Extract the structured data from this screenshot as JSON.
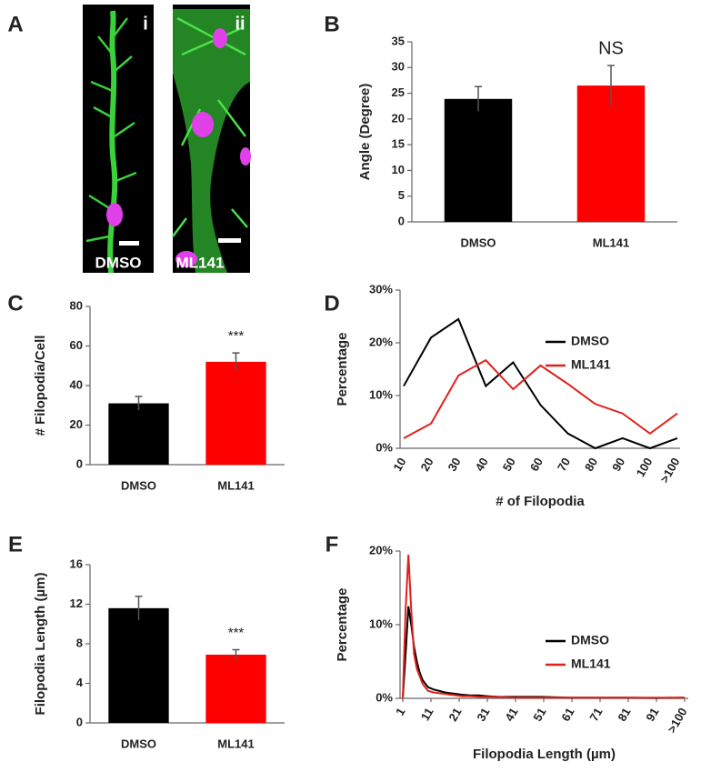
{
  "panel_labels": [
    "A",
    "B",
    "C",
    "D",
    "E",
    "F"
  ],
  "images": [
    {
      "label": "i",
      "caption": "DMSO"
    },
    {
      "label": "ii",
      "caption": "ML141"
    }
  ],
  "chart_data": [
    {
      "type": "bar",
      "ylabel": "Angle (Degree)",
      "categories": [
        "DMSO",
        "ML141"
      ],
      "values": [
        23.9,
        26.5
      ],
      "errors": [
        2.4,
        3.9
      ],
      "colors": [
        "#000000",
        "#ff0000"
      ],
      "ylim": [
        0,
        35
      ],
      "yticks": [
        0,
        5,
        10,
        15,
        20,
        25,
        30,
        35
      ],
      "annotation": "NS"
    },
    {
      "type": "bar",
      "ylabel": "# Filopodia/Cell",
      "categories": [
        "DMSO",
        "ML141"
      ],
      "values": [
        31,
        52
      ],
      "errors": [
        3.5,
        4.5
      ],
      "colors": [
        "#000000",
        "#ff0000"
      ],
      "ylim": [
        0,
        80
      ],
      "yticks": [
        0,
        20,
        40,
        60,
        80
      ],
      "annotation": "***"
    },
    {
      "type": "line",
      "ylabel": "Percentage",
      "xlabel": "# of Filopodia",
      "categories": [
        "10",
        "20",
        "30",
        "40",
        "50",
        "60",
        "70",
        "80",
        "90",
        "100",
        ">100"
      ],
      "series": [
        {
          "name": "DMSO",
          "color": "#000000",
          "values": [
            11.8,
            21,
            24.5,
            11.8,
            16.3,
            8.2,
            2.8,
            0,
            1.9,
            0,
            1.9
          ]
        },
        {
          "name": "ML141",
          "color": "#e0201b",
          "values": [
            1.9,
            4.7,
            13.8,
            16.7,
            11.2,
            15.7,
            12.2,
            8.4,
            6.6,
            2.8,
            6.6
          ]
        }
      ],
      "ylim": [
        0,
        30
      ],
      "yticks": [
        {
          "value": 0,
          "label": "0%"
        },
        {
          "value": 10,
          "label": "10%"
        },
        {
          "value": 20,
          "label": "20%"
        },
        {
          "value": 30,
          "label": "30%"
        }
      ]
    },
    {
      "type": "bar",
      "ylabel": "Filopodia Length (µm)",
      "categories": [
        "DMSO",
        "ML141"
      ],
      "values": [
        11.6,
        6.9
      ],
      "errors": [
        1.2,
        0.5
      ],
      "colors": [
        "#000000",
        "#ff0000"
      ],
      "ylim": [
        0,
        16
      ],
      "yticks": [
        0,
        4,
        8,
        12,
        16
      ],
      "annotation": "***"
    },
    {
      "type": "xyline",
      "ylabel": "Percentage",
      "xlabel": "Filopodia Length (µm)",
      "x": [
        1,
        2,
        3,
        4,
        5,
        6,
        7,
        8,
        9,
        10,
        12,
        14,
        16,
        18,
        20,
        22,
        25,
        28,
        31,
        35,
        40,
        50,
        60,
        70,
        80,
        90,
        101
      ],
      "series": [
        {
          "name": "DMSO",
          "color": "#000000",
          "values": [
            0,
            6,
            12.5,
            10,
            7,
            5,
            3.5,
            2.5,
            2,
            1.5,
            1.2,
            1,
            0.8,
            0.7,
            0.6,
            0.5,
            0.4,
            0.4,
            0.3,
            0.2,
            0.2,
            0.2,
            0.1,
            0.1,
            0.1,
            0.05,
            0.1
          ]
        },
        {
          "name": "ML141",
          "color": "#e0201b",
          "values": [
            0,
            12,
            19.5,
            12,
            6,
            4,
            3,
            2,
            1.5,
            1,
            0.8,
            0.7,
            0.6,
            0.5,
            0.4,
            0.3,
            0.3,
            0.2,
            0.2,
            0.2,
            0.1,
            0.1,
            0.1,
            0.1,
            0.1,
            0.1,
            0.1
          ]
        }
      ],
      "xlim": [
        1,
        101
      ],
      "xticks": [
        1,
        11,
        21,
        31,
        41,
        51,
        61,
        71,
        81,
        91,
        {
          "value": 101,
          "label": ">100"
        }
      ],
      "ylim": [
        0,
        20
      ],
      "yticks": [
        {
          "value": 0,
          "label": "0%"
        },
        {
          "value": 10,
          "label": "10%"
        },
        {
          "value": 20,
          "label": "20%"
        }
      ]
    }
  ]
}
